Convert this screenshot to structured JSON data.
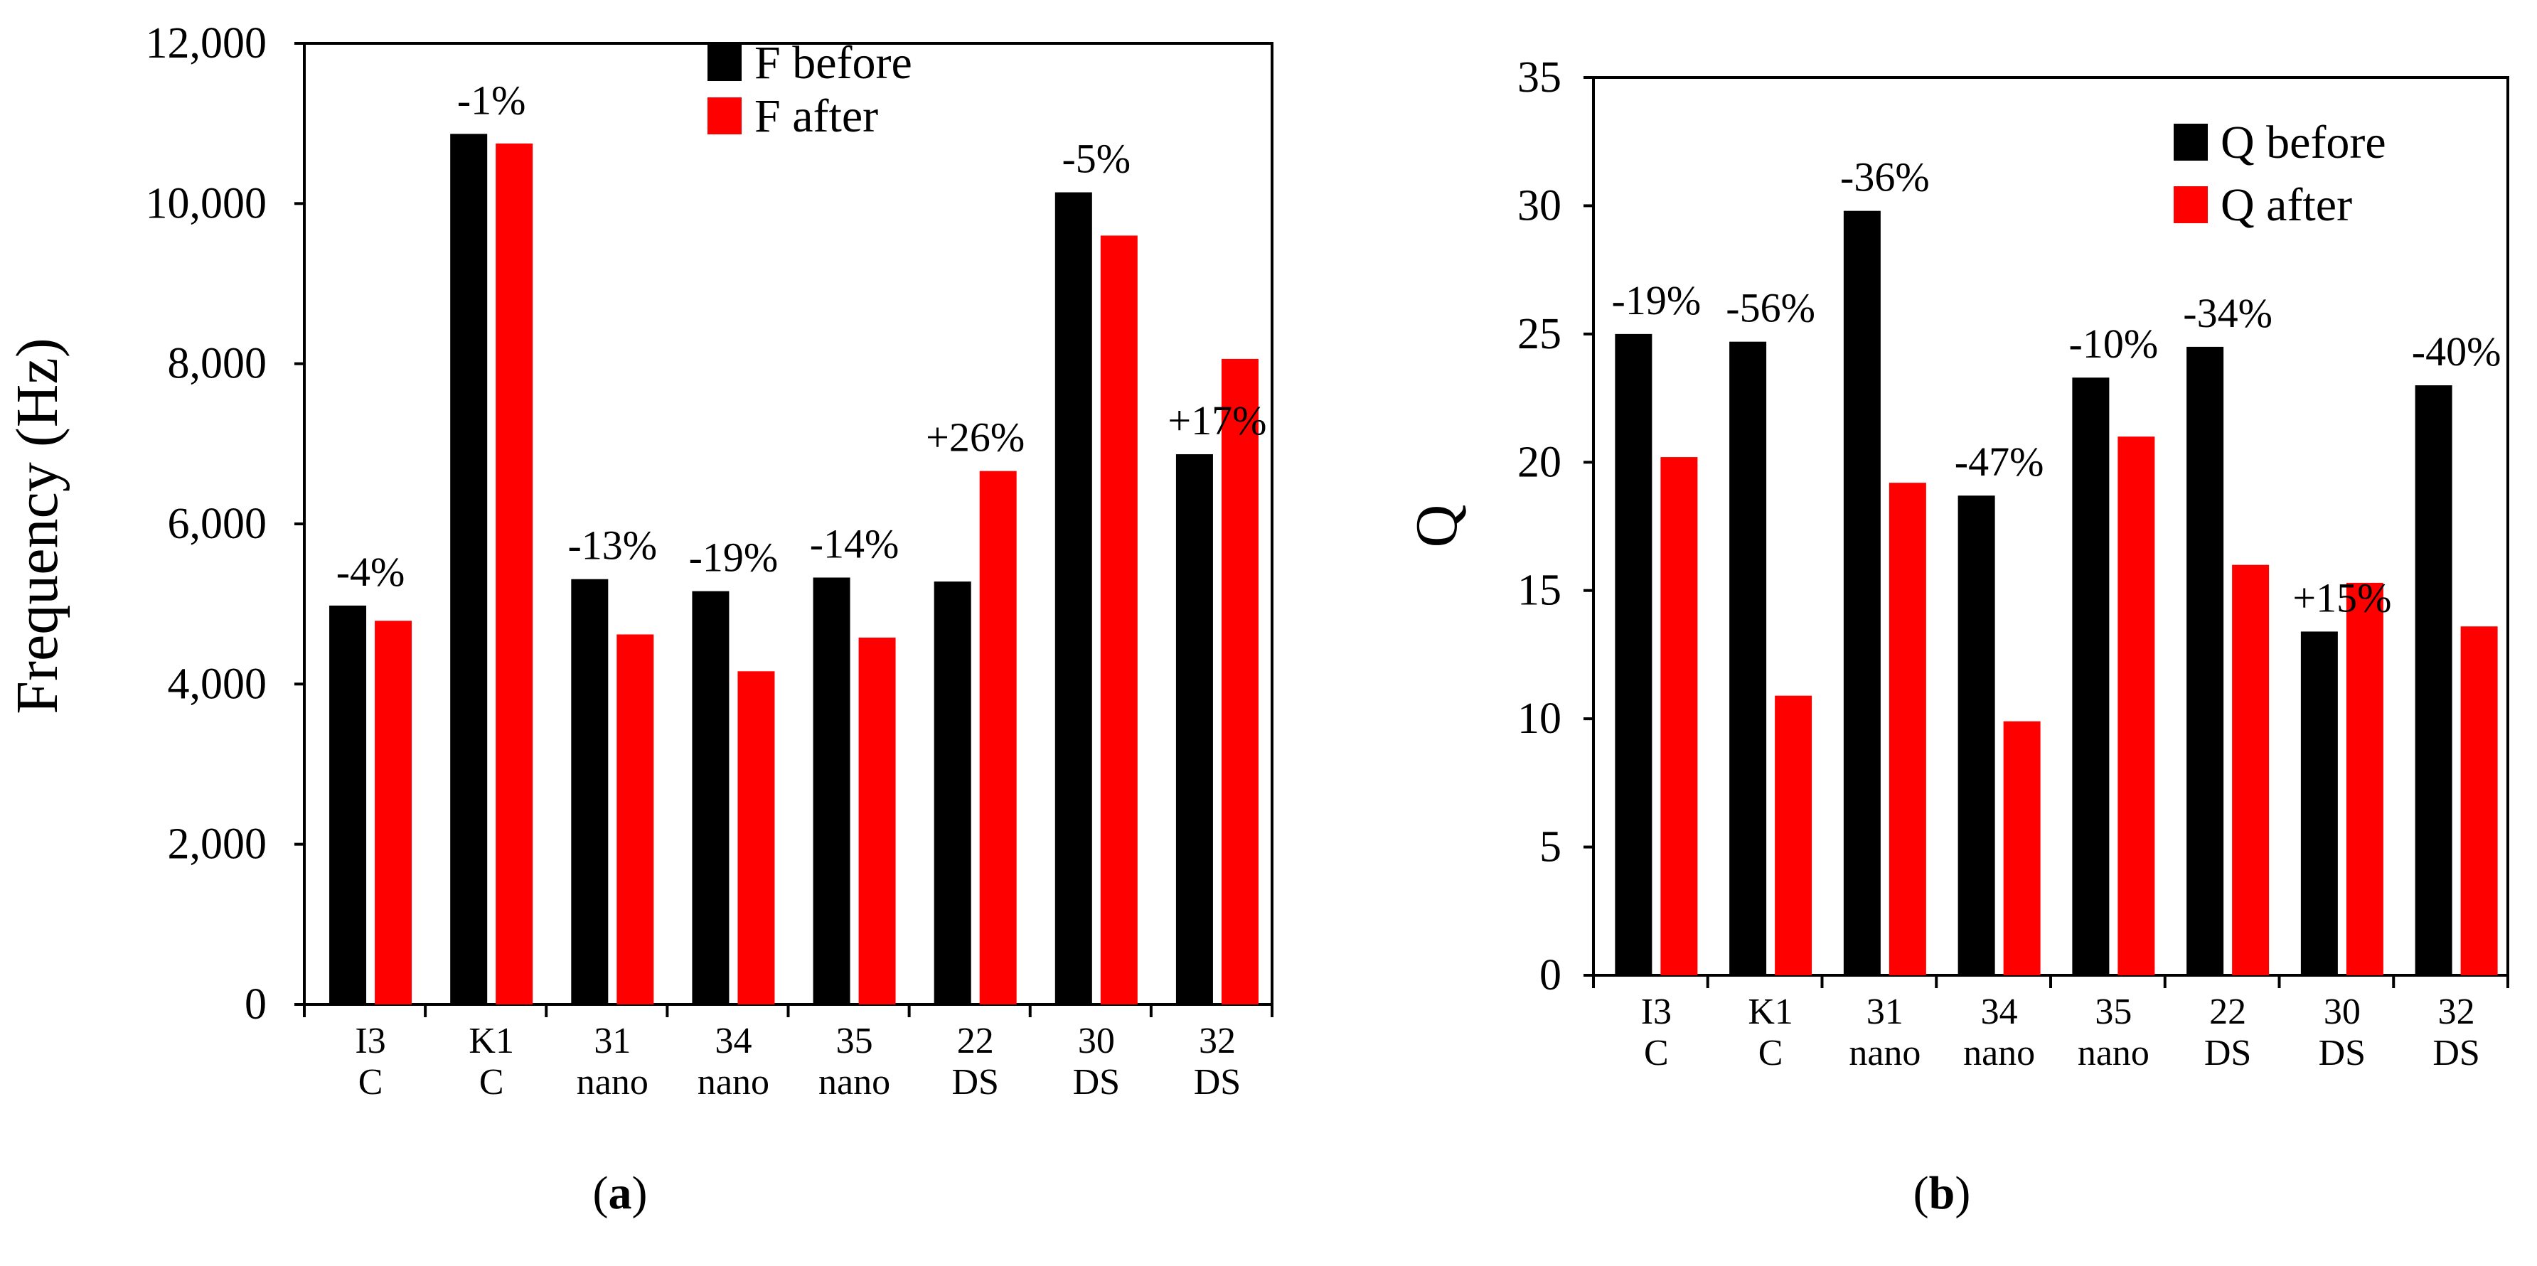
{
  "chart_data": [
    {
      "type": "bar",
      "panel_label": "(a)",
      "panel_letter": "a",
      "ylabel": "Frequency (Hz)",
      "xlabel": "",
      "ylim": [
        0,
        12000
      ],
      "yticks": [
        0,
        2000,
        4000,
        6000,
        8000,
        10000,
        12000
      ],
      "ytick_labels": [
        "0",
        "2,000",
        "4,000",
        "6,000",
        "8,000",
        "10,000",
        "12,000"
      ],
      "categories": [
        [
          "I3",
          "C"
        ],
        [
          "K1",
          "C"
        ],
        [
          "31",
          "nano"
        ],
        [
          "34",
          "nano"
        ],
        [
          "35",
          "nano"
        ],
        [
          "22",
          "DS"
        ],
        [
          "30",
          "DS"
        ],
        [
          "32",
          "DS"
        ]
      ],
      "series": [
        {
          "name": "F before",
          "color": "#000000",
          "values": [
            4980,
            10870,
            5310,
            5160,
            5330,
            5280,
            10140,
            6870
          ]
        },
        {
          "name": "F after",
          "color": "#ff0000",
          "values": [
            4790,
            10750,
            4620,
            4160,
            4580,
            6660,
            9600,
            8060
          ]
        }
      ],
      "annotations": [
        "-4%",
        "-1%",
        "-13%",
        "-19%",
        "-14%",
        "+26%",
        "-5%",
        "+17%"
      ],
      "legend": "top-center",
      "grid": false
    },
    {
      "type": "bar",
      "panel_label": "(b)",
      "panel_letter": "b",
      "ylabel": "Q",
      "xlabel": "",
      "ylim": [
        0,
        35
      ],
      "yticks": [
        0,
        5,
        10,
        15,
        20,
        25,
        30,
        35
      ],
      "ytick_labels": [
        "0",
        "5",
        "10",
        "15",
        "20",
        "25",
        "30",
        "35"
      ],
      "categories": [
        [
          "I3",
          "C"
        ],
        [
          "K1",
          "C"
        ],
        [
          "31",
          "nano"
        ],
        [
          "34",
          "nano"
        ],
        [
          "35",
          "nano"
        ],
        [
          "22",
          "DS"
        ],
        [
          "30",
          "DS"
        ],
        [
          "32",
          "DS"
        ]
      ],
      "series": [
        {
          "name": "Q before",
          "color": "#000000",
          "values": [
            25.0,
            24.7,
            29.8,
            18.7,
            23.3,
            24.5,
            13.4,
            23.0
          ]
        },
        {
          "name": "Q after",
          "color": "#ff0000",
          "values": [
            20.2,
            10.9,
            19.2,
            9.9,
            21.0,
            16.0,
            15.3,
            13.6
          ]
        }
      ],
      "annotations": [
        "-19%",
        "-56%",
        "-36%",
        "-47%",
        "-10%",
        "-34%",
        "+15%",
        "-40%"
      ],
      "legend": "top-right",
      "grid": false
    }
  ]
}
